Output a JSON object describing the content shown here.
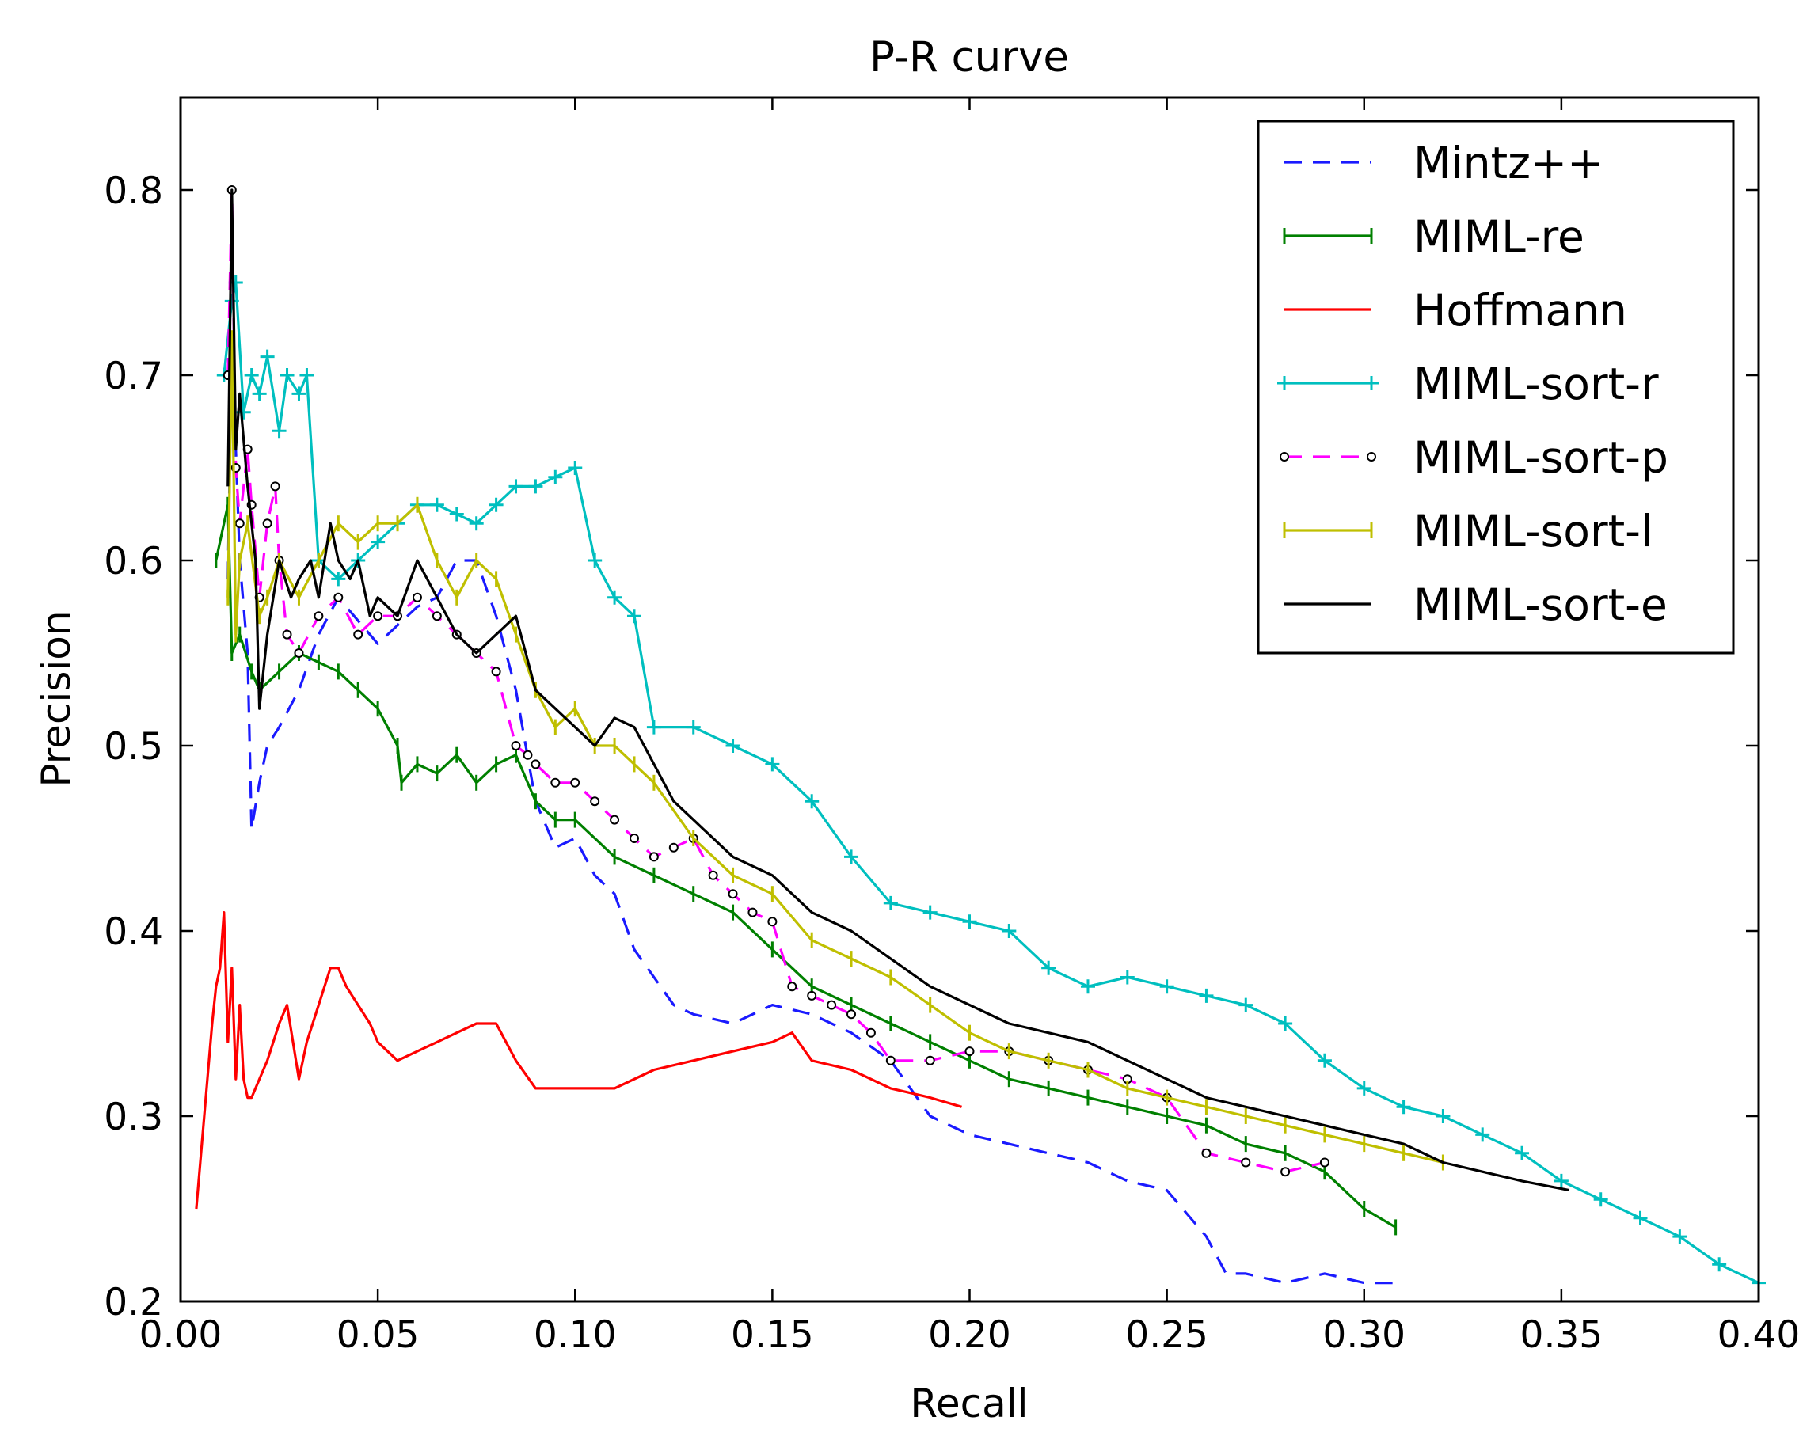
{
  "chart_data": {
    "type": "line",
    "title": "P-R curve",
    "xlabel": "Recall",
    "ylabel": "Precision",
    "xlim": [
      0.0,
      0.4
    ],
    "ylim": [
      0.2,
      0.85
    ],
    "xticks": [
      "0.00",
      "0.05",
      "0.10",
      "0.15",
      "0.20",
      "0.25",
      "0.30",
      "0.35",
      "0.40"
    ],
    "yticks": [
      "0.2",
      "0.3",
      "0.4",
      "0.5",
      "0.6",
      "0.7",
      "0.8"
    ],
    "xtick_values": [
      0.0,
      0.05,
      0.1,
      0.15,
      0.2,
      0.25,
      0.3,
      0.35,
      0.4
    ],
    "ytick_values": [
      0.2,
      0.3,
      0.4,
      0.5,
      0.6,
      0.7,
      0.8
    ],
    "legend_position": "top-right",
    "series": [
      {
        "name": "Mintz++",
        "color": "#1a1aff",
        "style": "dashed",
        "marker": "none",
        "x": [
          0.012,
          0.013,
          0.015,
          0.017,
          0.018,
          0.02,
          0.022,
          0.025,
          0.03,
          0.035,
          0.04,
          0.05,
          0.06,
          0.065,
          0.07,
          0.075,
          0.08,
          0.085,
          0.09,
          0.095,
          0.1,
          0.105,
          0.11,
          0.115,
          0.12,
          0.125,
          0.13,
          0.14,
          0.15,
          0.16,
          0.17,
          0.18,
          0.19,
          0.2,
          0.21,
          0.22,
          0.23,
          0.24,
          0.25,
          0.26,
          0.265,
          0.27,
          0.28,
          0.29,
          0.3,
          0.31
        ],
        "y": [
          0.59,
          0.72,
          0.6,
          0.55,
          0.455,
          0.48,
          0.5,
          0.51,
          0.53,
          0.56,
          0.58,
          0.555,
          0.575,
          0.58,
          0.6,
          0.6,
          0.57,
          0.53,
          0.47,
          0.445,
          0.45,
          0.43,
          0.42,
          0.39,
          0.375,
          0.36,
          0.355,
          0.35,
          0.36,
          0.355,
          0.345,
          0.33,
          0.3,
          0.29,
          0.285,
          0.28,
          0.275,
          0.265,
          0.26,
          0.235,
          0.215,
          0.215,
          0.21,
          0.215,
          0.21,
          0.21
        ]
      },
      {
        "name": "MIML-re",
        "color": "#008000",
        "style": "solid",
        "marker": "vbar",
        "x": [
          0.009,
          0.012,
          0.013,
          0.015,
          0.018,
          0.02,
          0.025,
          0.03,
          0.035,
          0.04,
          0.045,
          0.05,
          0.055,
          0.056,
          0.06,
          0.065,
          0.07,
          0.075,
          0.08,
          0.085,
          0.09,
          0.095,
          0.1,
          0.11,
          0.12,
          0.13,
          0.14,
          0.15,
          0.16,
          0.17,
          0.18,
          0.19,
          0.2,
          0.21,
          0.22,
          0.23,
          0.24,
          0.25,
          0.26,
          0.27,
          0.28,
          0.29,
          0.3,
          0.308
        ],
        "y": [
          0.6,
          0.63,
          0.55,
          0.56,
          0.54,
          0.53,
          0.54,
          0.55,
          0.545,
          0.54,
          0.53,
          0.52,
          0.5,
          0.48,
          0.49,
          0.485,
          0.495,
          0.48,
          0.49,
          0.495,
          0.47,
          0.46,
          0.46,
          0.44,
          0.43,
          0.42,
          0.41,
          0.39,
          0.37,
          0.36,
          0.35,
          0.34,
          0.33,
          0.32,
          0.315,
          0.31,
          0.305,
          0.3,
          0.295,
          0.285,
          0.28,
          0.27,
          0.25,
          0.24
        ]
      },
      {
        "name": "Hoffmann",
        "color": "#ff0000",
        "style": "solid",
        "marker": "none",
        "x": [
          0.004,
          0.006,
          0.008,
          0.009,
          0.01,
          0.011,
          0.012,
          0.013,
          0.014,
          0.015,
          0.016,
          0.017,
          0.018,
          0.02,
          0.022,
          0.025,
          0.027,
          0.03,
          0.032,
          0.035,
          0.038,
          0.04,
          0.042,
          0.045,
          0.048,
          0.05,
          0.055,
          0.06,
          0.065,
          0.07,
          0.075,
          0.08,
          0.085,
          0.09,
          0.095,
          0.1,
          0.11,
          0.12,
          0.13,
          0.14,
          0.15,
          0.155,
          0.16,
          0.17,
          0.175,
          0.18,
          0.19,
          0.198
        ],
        "y": [
          0.25,
          0.3,
          0.35,
          0.37,
          0.38,
          0.41,
          0.34,
          0.38,
          0.32,
          0.36,
          0.32,
          0.31,
          0.31,
          0.32,
          0.33,
          0.35,
          0.36,
          0.32,
          0.34,
          0.36,
          0.38,
          0.38,
          0.37,
          0.36,
          0.35,
          0.34,
          0.33,
          0.335,
          0.34,
          0.345,
          0.35,
          0.35,
          0.33,
          0.315,
          0.315,
          0.315,
          0.315,
          0.325,
          0.33,
          0.335,
          0.34,
          0.345,
          0.33,
          0.325,
          0.32,
          0.315,
          0.31,
          0.305
        ]
      },
      {
        "name": "MIML-sort-r",
        "color": "#00bfbf",
        "style": "solid",
        "marker": "plus",
        "x": [
          0.011,
          0.013,
          0.014,
          0.016,
          0.018,
          0.02,
          0.022,
          0.025,
          0.027,
          0.03,
          0.032,
          0.035,
          0.04,
          0.045,
          0.05,
          0.055,
          0.06,
          0.065,
          0.07,
          0.075,
          0.08,
          0.085,
          0.09,
          0.095,
          0.1,
          0.105,
          0.11,
          0.115,
          0.12,
          0.13,
          0.14,
          0.15,
          0.16,
          0.17,
          0.18,
          0.19,
          0.2,
          0.21,
          0.22,
          0.23,
          0.24,
          0.25,
          0.26,
          0.27,
          0.28,
          0.29,
          0.3,
          0.31,
          0.32,
          0.33,
          0.34,
          0.35,
          0.36,
          0.37,
          0.38,
          0.39,
          0.4
        ],
        "y": [
          0.7,
          0.74,
          0.75,
          0.68,
          0.7,
          0.69,
          0.71,
          0.67,
          0.7,
          0.69,
          0.7,
          0.6,
          0.59,
          0.6,
          0.61,
          0.62,
          0.63,
          0.63,
          0.625,
          0.62,
          0.63,
          0.64,
          0.64,
          0.645,
          0.65,
          0.6,
          0.58,
          0.57,
          0.51,
          0.51,
          0.5,
          0.49,
          0.47,
          0.44,
          0.415,
          0.41,
          0.405,
          0.4,
          0.38,
          0.37,
          0.375,
          0.37,
          0.365,
          0.36,
          0.35,
          0.33,
          0.315,
          0.305,
          0.3,
          0.29,
          0.28,
          0.265,
          0.255,
          0.245,
          0.235,
          0.22,
          0.21
        ]
      },
      {
        "name": "MIML-sort-p",
        "color": "#ff00ff",
        "style": "dashed",
        "marker": "circle",
        "x": [
          0.012,
          0.013,
          0.014,
          0.015,
          0.017,
          0.018,
          0.02,
          0.022,
          0.024,
          0.025,
          0.027,
          0.03,
          0.035,
          0.04,
          0.045,
          0.05,
          0.055,
          0.06,
          0.065,
          0.07,
          0.075,
          0.08,
          0.085,
          0.088,
          0.09,
          0.095,
          0.1,
          0.105,
          0.11,
          0.115,
          0.12,
          0.125,
          0.13,
          0.135,
          0.14,
          0.145,
          0.15,
          0.155,
          0.16,
          0.165,
          0.17,
          0.175,
          0.18,
          0.19,
          0.2,
          0.21,
          0.22,
          0.23,
          0.24,
          0.25,
          0.26,
          0.27,
          0.28,
          0.29
        ],
        "y": [
          0.7,
          0.8,
          0.65,
          0.62,
          0.66,
          0.63,
          0.58,
          0.62,
          0.64,
          0.6,
          0.56,
          0.55,
          0.57,
          0.58,
          0.56,
          0.57,
          0.57,
          0.58,
          0.57,
          0.56,
          0.55,
          0.54,
          0.5,
          0.495,
          0.49,
          0.48,
          0.48,
          0.47,
          0.46,
          0.45,
          0.44,
          0.445,
          0.45,
          0.43,
          0.42,
          0.41,
          0.405,
          0.37,
          0.365,
          0.36,
          0.355,
          0.345,
          0.33,
          0.33,
          0.335,
          0.335,
          0.33,
          0.325,
          0.32,
          0.31,
          0.28,
          0.275,
          0.27,
          0.275
        ]
      },
      {
        "name": "MIML-sort-l",
        "color": "#bfbf00",
        "style": "solid",
        "marker": "vbar",
        "x": [
          0.012,
          0.013,
          0.014,
          0.015,
          0.017,
          0.02,
          0.022,
          0.025,
          0.03,
          0.035,
          0.04,
          0.045,
          0.05,
          0.055,
          0.06,
          0.065,
          0.07,
          0.075,
          0.08,
          0.085,
          0.09,
          0.095,
          0.1,
          0.105,
          0.11,
          0.115,
          0.12,
          0.13,
          0.14,
          0.15,
          0.16,
          0.17,
          0.18,
          0.19,
          0.2,
          0.21,
          0.22,
          0.23,
          0.24,
          0.25,
          0.26,
          0.27,
          0.28,
          0.29,
          0.3,
          0.31,
          0.32
        ],
        "y": [
          0.58,
          0.72,
          0.56,
          0.6,
          0.62,
          0.57,
          0.58,
          0.6,
          0.58,
          0.6,
          0.62,
          0.61,
          0.62,
          0.62,
          0.63,
          0.6,
          0.58,
          0.6,
          0.59,
          0.56,
          0.53,
          0.51,
          0.52,
          0.5,
          0.5,
          0.49,
          0.48,
          0.45,
          0.43,
          0.42,
          0.395,
          0.385,
          0.375,
          0.36,
          0.345,
          0.335,
          0.33,
          0.325,
          0.315,
          0.31,
          0.305,
          0.3,
          0.295,
          0.29,
          0.285,
          0.28,
          0.275
        ]
      },
      {
        "name": "MIML-sort-e",
        "color": "#000000",
        "style": "solid",
        "marker": "none",
        "x": [
          0.012,
          0.013,
          0.014,
          0.015,
          0.017,
          0.019,
          0.02,
          0.022,
          0.025,
          0.028,
          0.03,
          0.033,
          0.035,
          0.038,
          0.04,
          0.043,
          0.045,
          0.048,
          0.05,
          0.055,
          0.06,
          0.065,
          0.07,
          0.075,
          0.08,
          0.085,
          0.09,
          0.095,
          0.1,
          0.105,
          0.11,
          0.115,
          0.12,
          0.125,
          0.13,
          0.14,
          0.15,
          0.16,
          0.17,
          0.18,
          0.19,
          0.2,
          0.21,
          0.22,
          0.23,
          0.24,
          0.25,
          0.26,
          0.27,
          0.28,
          0.29,
          0.3,
          0.31,
          0.32,
          0.33,
          0.34,
          0.352
        ],
        "y": [
          0.64,
          0.8,
          0.66,
          0.69,
          0.64,
          0.6,
          0.52,
          0.56,
          0.6,
          0.58,
          0.59,
          0.6,
          0.58,
          0.62,
          0.6,
          0.59,
          0.6,
          0.57,
          0.58,
          0.57,
          0.6,
          0.58,
          0.56,
          0.55,
          0.56,
          0.57,
          0.53,
          0.52,
          0.51,
          0.5,
          0.515,
          0.51,
          0.49,
          0.47,
          0.46,
          0.44,
          0.43,
          0.41,
          0.4,
          0.385,
          0.37,
          0.36,
          0.35,
          0.345,
          0.34,
          0.33,
          0.32,
          0.31,
          0.305,
          0.3,
          0.295,
          0.29,
          0.285,
          0.275,
          0.27,
          0.265,
          0.26
        ]
      }
    ]
  }
}
